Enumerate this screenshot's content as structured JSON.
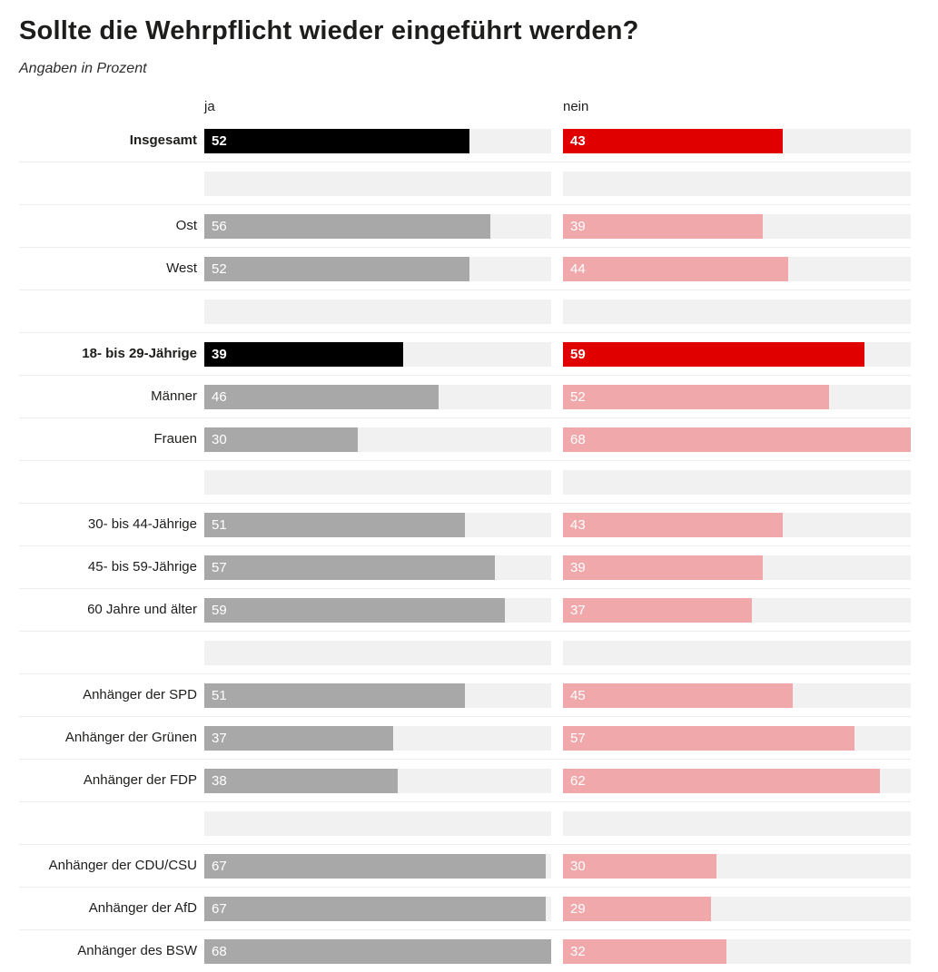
{
  "page": {
    "title": "Sollte die Wehrpflicht wieder eingeführt werden?",
    "subtitle": "Angaben in Prozent"
  },
  "colors": {
    "ja_highlight": "#000000",
    "nein_highlight": "#e10000",
    "ja_normal": "#a8a8a8",
    "nein_normal": "#f1a8ab",
    "track": "#f1f1f1",
    "hairline": "#ededed"
  },
  "chart_data": {
    "type": "bar",
    "orientation": "horizontal",
    "title": "Sollte die Wehrpflicht wieder eingeführt werden?",
    "subtitle": "Angaben in Prozent",
    "series_labels": [
      "ja",
      "nein"
    ],
    "value_unit": "percent",
    "value_max": 68,
    "grid": false,
    "legend_position": "top-inline-headers",
    "rows": [
      {
        "label": "Insgesamt",
        "ja": 52,
        "nein": 43,
        "highlight": true
      },
      {
        "spacer": true
      },
      {
        "label": "Ost",
        "ja": 56,
        "nein": 39,
        "highlight": false
      },
      {
        "label": "West",
        "ja": 52,
        "nein": 44,
        "highlight": false
      },
      {
        "spacer": true
      },
      {
        "label": "18- bis 29-Jährige",
        "ja": 39,
        "nein": 59,
        "highlight": true
      },
      {
        "label": "Männer",
        "ja": 46,
        "nein": 52,
        "highlight": false
      },
      {
        "label": "Frauen",
        "ja": 30,
        "nein": 68,
        "highlight": false
      },
      {
        "spacer": true
      },
      {
        "label": "30- bis 44-Jährige",
        "ja": 51,
        "nein": 43,
        "highlight": false
      },
      {
        "label": "45- bis 59-Jährige",
        "ja": 57,
        "nein": 39,
        "highlight": false
      },
      {
        "label": "60 Jahre und älter",
        "ja": 59,
        "nein": 37,
        "highlight": false
      },
      {
        "spacer": true
      },
      {
        "label": "Anhänger der SPD",
        "ja": 51,
        "nein": 45,
        "highlight": false
      },
      {
        "label": "Anhänger der Grünen",
        "ja": 37,
        "nein": 57,
        "highlight": false
      },
      {
        "label": "Anhänger der FDP",
        "ja": 38,
        "nein": 62,
        "highlight": false
      },
      {
        "spacer": true
      },
      {
        "label": "Anhänger der CDU/CSU",
        "ja": 67,
        "nein": 30,
        "highlight": false
      },
      {
        "label": "Anhänger der AfD",
        "ja": 67,
        "nein": 29,
        "highlight": false
      },
      {
        "label": "Anhänger des BSW",
        "ja": 68,
        "nein": 32,
        "highlight": false
      }
    ]
  }
}
